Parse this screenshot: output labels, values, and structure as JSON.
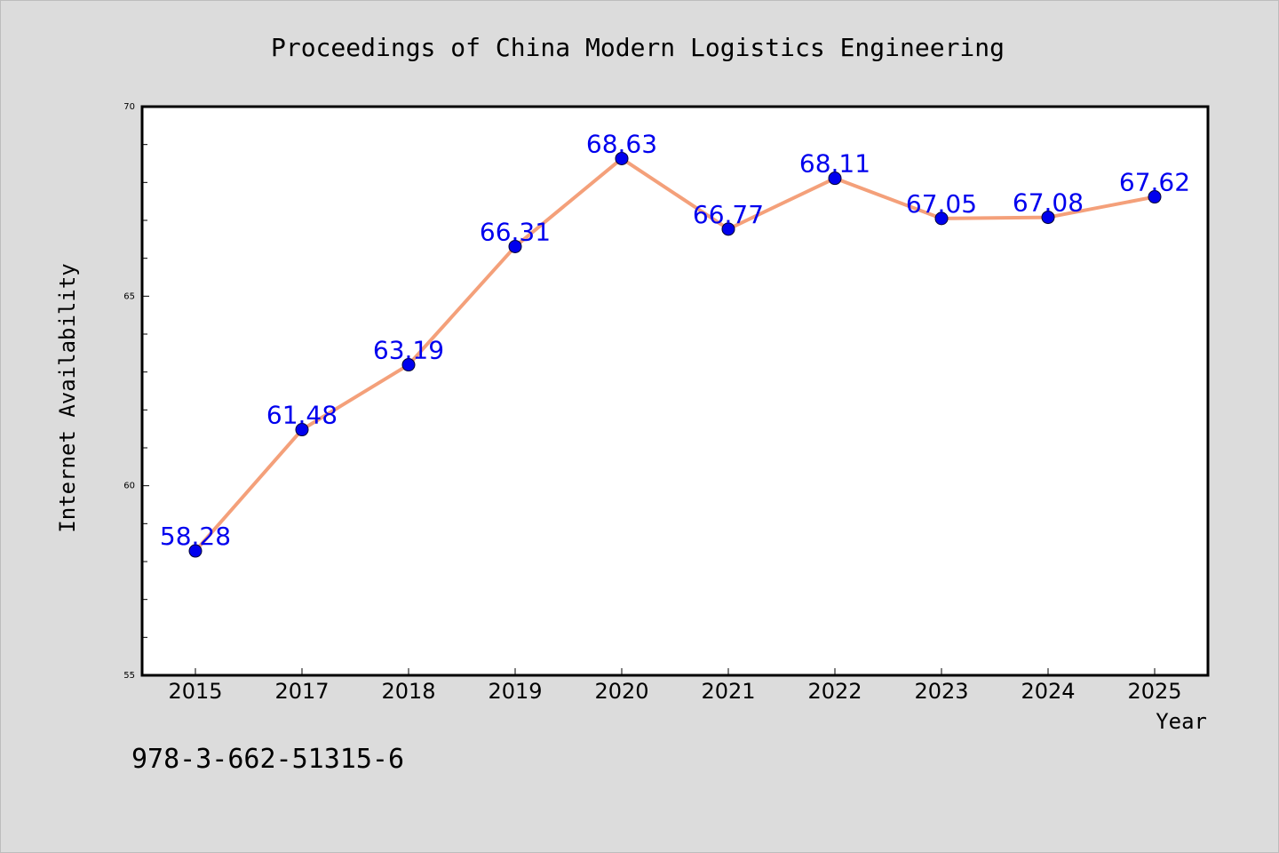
{
  "colors": {
    "background": "#dcdcdc",
    "plot_background": "#ffffff",
    "line": "#f4a07a",
    "marker": "#0000ee",
    "data_label": "#0000ee"
  },
  "footer": {
    "isbn": "978-3-662-51315-6"
  },
  "chart_data": {
    "type": "line",
    "title": "Proceedings of China Modern Logistics Engineering",
    "xlabel": "Year",
    "ylabel": "Internet Availability",
    "categories": [
      "2015",
      "2017",
      "2018",
      "2019",
      "2020",
      "2021",
      "2022",
      "2023",
      "2024",
      "2025"
    ],
    "series": [
      {
        "values": [
          58.28,
          61.48,
          63.19,
          66.31,
          68.63,
          66.77,
          68.11,
          67.05,
          67.08,
          67.62
        ],
        "data_labels": [
          "58.28",
          "61.48",
          "63.19",
          "66.31",
          "68.63",
          "66.77",
          "68.11",
          "67.05",
          "67.08",
          "67.62"
        ]
      }
    ],
    "ylim": [
      55,
      70
    ],
    "yticks": [
      "55",
      "60",
      "65",
      "70"
    ],
    "y_minor_step": 1,
    "grid": false,
    "legend": "none"
  }
}
